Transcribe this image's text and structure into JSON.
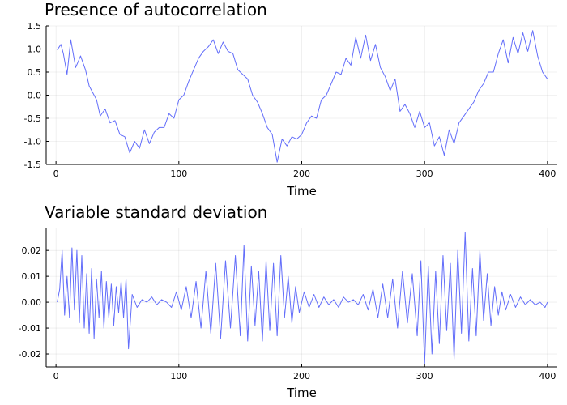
{
  "chart_data": [
    {
      "type": "line",
      "title": "Presence of autocorrelation",
      "xlabel": "Time",
      "ylabel": "",
      "xlim": [
        -8,
        408
      ],
      "ylim": [
        -1.5,
        1.5
      ],
      "xticks": [
        0,
        100,
        200,
        300,
        400
      ],
      "xtick_labels": [
        "0",
        "100",
        "200",
        "300",
        "400"
      ],
      "yticks": [
        -1.5,
        -1.0,
        -0.5,
        0.0,
        0.5,
        1.0,
        1.5
      ],
      "ytick_labels": [
        "-1.5",
        "-1.0",
        "-0.5",
        "0.0",
        "0.5",
        "1.0",
        "1.5"
      ],
      "grid": true,
      "legend": false,
      "line_color": "#636efa",
      "series": [
        {
          "x": [
            1,
            4,
            6,
            9,
            12,
            16,
            20,
            24,
            27,
            30,
            33,
            36,
            40,
            44,
            48,
            52,
            56,
            60,
            64,
            68,
            72,
            76,
            80,
            84,
            88,
            92,
            96,
            100,
            104,
            108,
            112,
            116,
            120,
            124,
            128,
            132,
            136,
            140,
            144,
            148,
            152,
            156,
            160,
            164,
            168,
            172,
            176,
            180,
            184,
            188,
            192,
            196,
            200,
            204,
            208,
            212,
            216,
            220,
            224,
            228,
            232,
            236,
            240,
            244,
            248,
            252,
            256,
            260,
            264,
            268,
            272,
            276,
            280,
            284,
            288,
            292,
            296,
            300,
            304,
            308,
            312,
            316,
            320,
            324,
            328,
            332,
            336,
            340,
            344,
            348,
            352,
            356,
            360,
            364,
            368,
            372,
            376,
            380,
            384,
            388,
            392,
            396,
            400
          ],
          "y": [
            0.98,
            1.1,
            0.9,
            0.45,
            1.2,
            0.6,
            0.85,
            0.55,
            0.2,
            0.05,
            -0.1,
            -0.45,
            -0.3,
            -0.6,
            -0.55,
            -0.85,
            -0.9,
            -1.25,
            -1.0,
            -1.15,
            -0.75,
            -1.05,
            -0.8,
            -0.7,
            -0.7,
            -0.4,
            -0.5,
            -0.1,
            0.0,
            0.3,
            0.55,
            0.8,
            0.95,
            1.05,
            1.2,
            0.9,
            1.15,
            0.95,
            0.9,
            0.55,
            0.45,
            0.35,
            0.0,
            -0.15,
            -0.4,
            -0.7,
            -0.85,
            -1.45,
            -0.95,
            -1.1,
            -0.9,
            -0.95,
            -0.85,
            -0.6,
            -0.45,
            -0.5,
            -0.1,
            0.0,
            0.25,
            0.5,
            0.45,
            0.8,
            0.65,
            1.25,
            0.8,
            1.3,
            0.75,
            1.1,
            0.6,
            0.4,
            0.1,
            0.35,
            -0.35,
            -0.2,
            -0.4,
            -0.7,
            -0.35,
            -0.7,
            -0.6,
            -1.1,
            -0.9,
            -1.3,
            -0.75,
            -1.05,
            -0.6,
            -0.45,
            -0.3,
            -0.15,
            0.1,
            0.25,
            0.5,
            0.5,
            0.9,
            1.2,
            0.7,
            1.25,
            0.9,
            1.35,
            0.95,
            1.4,
            0.85,
            0.5,
            0.35
          ]
        }
      ]
    },
    {
      "type": "line",
      "title": "Variable standard deviation",
      "xlabel": "Time",
      "ylabel": "",
      "xlim": [
        -8,
        408
      ],
      "ylim": [
        -0.025,
        0.0285
      ],
      "xticks": [
        0,
        100,
        200,
        300,
        400
      ],
      "xtick_labels": [
        "0",
        "100",
        "200",
        "300",
        "400"
      ],
      "yticks": [
        -0.02,
        -0.01,
        0.0,
        0.01,
        0.02
      ],
      "ytick_labels": [
        "-0.02",
        "-0.01",
        "0.00",
        "0.01",
        "0.02"
      ],
      "grid": true,
      "legend": false,
      "line_color": "#636efa",
      "series": [
        {
          "x": [
            1,
            3,
            5,
            7,
            9,
            11,
            13,
            15,
            17,
            19,
            21,
            23,
            25,
            27,
            29,
            31,
            33,
            35,
            37,
            39,
            41,
            43,
            45,
            47,
            49,
            51,
            53,
            55,
            57,
            59,
            62,
            66,
            70,
            74,
            78,
            82,
            86,
            90,
            94,
            98,
            102,
            106,
            110,
            114,
            118,
            122,
            126,
            130,
            134,
            138,
            142,
            146,
            150,
            153,
            156,
            159,
            162,
            165,
            168,
            171,
            174,
            177,
            180,
            183,
            186,
            189,
            192,
            195,
            198,
            202,
            206,
            210,
            214,
            218,
            222,
            226,
            230,
            234,
            238,
            242,
            246,
            250,
            254,
            258,
            262,
            266,
            270,
            274,
            278,
            282,
            286,
            290,
            294,
            297,
            300,
            303,
            306,
            309,
            312,
            315,
            318,
            321,
            324,
            327,
            330,
            333,
            336,
            339,
            342,
            345,
            348,
            351,
            354,
            357,
            360,
            363,
            366,
            370,
            374,
            378,
            382,
            386,
            390,
            394,
            398,
            400
          ],
          "y": [
            0.0,
            0.005,
            0.02,
            -0.005,
            0.01,
            -0.006,
            0.021,
            -0.003,
            0.02,
            -0.008,
            0.018,
            -0.01,
            0.011,
            -0.012,
            0.013,
            -0.014,
            0.009,
            -0.006,
            0.012,
            -0.01,
            0.008,
            -0.006,
            0.007,
            -0.009,
            0.006,
            -0.004,
            0.008,
            -0.006,
            0.009,
            -0.018,
            0.003,
            -0.002,
            0.001,
            0.0,
            0.002,
            -0.001,
            0.001,
            0.0,
            -0.002,
            0.004,
            -0.003,
            0.006,
            -0.006,
            0.008,
            -0.01,
            0.012,
            -0.012,
            0.015,
            -0.014,
            0.016,
            -0.01,
            0.018,
            -0.013,
            0.022,
            -0.015,
            0.014,
            -0.009,
            0.012,
            -0.015,
            0.016,
            -0.011,
            0.015,
            -0.013,
            0.018,
            -0.006,
            0.01,
            -0.008,
            0.006,
            -0.004,
            0.004,
            -0.002,
            0.003,
            -0.002,
            0.002,
            -0.001,
            0.001,
            -0.002,
            0.002,
            0.0,
            0.001,
            -0.001,
            0.003,
            -0.003,
            0.005,
            -0.006,
            0.007,
            -0.006,
            0.009,
            -0.01,
            0.012,
            -0.008,
            0.011,
            -0.013,
            0.016,
            -0.024,
            0.014,
            -0.02,
            0.012,
            -0.016,
            0.018,
            -0.011,
            0.015,
            -0.022,
            0.02,
            -0.012,
            0.027,
            -0.015,
            0.013,
            -0.013,
            0.02,
            -0.007,
            0.011,
            -0.009,
            0.006,
            -0.005,
            0.004,
            -0.003,
            0.003,
            -0.002,
            0.002,
            -0.001,
            0.001,
            -0.001,
            0.0,
            -0.002,
            0.0
          ]
        }
      ]
    }
  ]
}
